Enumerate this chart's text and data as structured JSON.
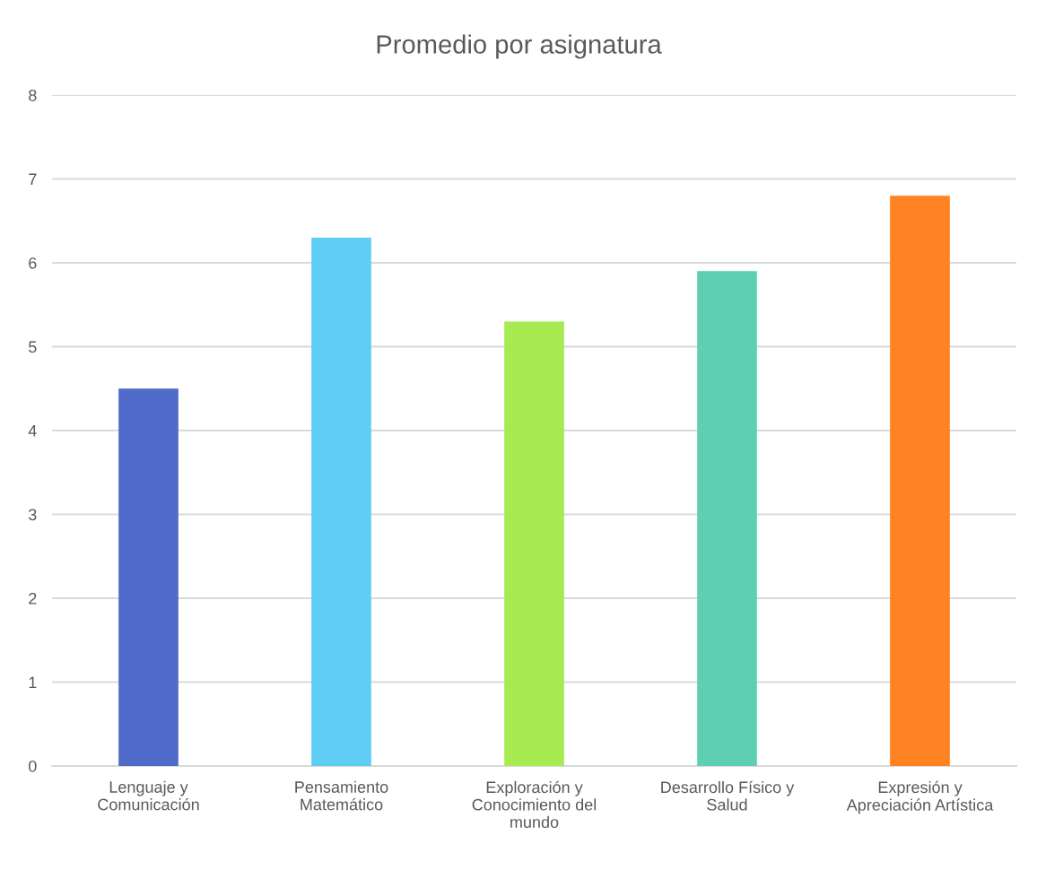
{
  "chart_data": {
    "type": "bar",
    "title": "Promedio por asignatura",
    "categories": [
      "Lenguaje y\nComunicación",
      "Pensamiento\nMatemático",
      "Exploración y\nConocimiento del\nmundo",
      "Desarrollo Físico y\nSalud",
      "Expresión y\nApreciación Artística"
    ],
    "values": [
      4.5,
      6.3,
      5.3,
      5.9,
      6.8
    ],
    "colors": [
      "#4f6ac9",
      "#5fcdf3",
      "#a8ea52",
      "#5ecfb3",
      "#ff8223"
    ],
    "ylim": [
      0,
      8
    ],
    "yticks": [
      0,
      1,
      2,
      3,
      4,
      5,
      6,
      7,
      8
    ],
    "grid": "y",
    "legend": false
  }
}
